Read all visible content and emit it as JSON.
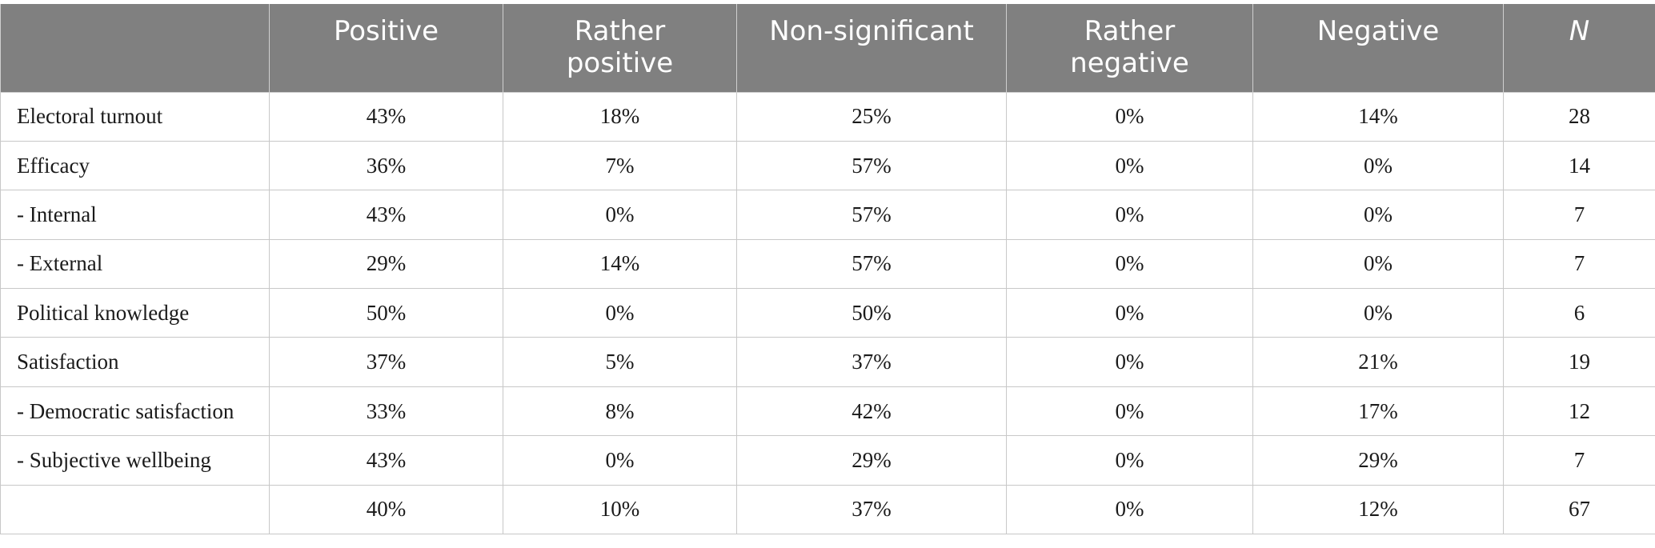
{
  "table": {
    "headers": [
      "",
      "Positive",
      "Rather positive",
      "Non-significant",
      "Rather negative",
      "Negative",
      "N"
    ],
    "rows": [
      {
        "label": "Electoral turnout",
        "cells": [
          "43%",
          "18%",
          "25%",
          "0%",
          "14%",
          "28"
        ]
      },
      {
        "label": "Efficacy",
        "cells": [
          "36%",
          "7%",
          "57%",
          "0%",
          "0%",
          "14"
        ]
      },
      {
        "label": "- Internal",
        "cells": [
          "43%",
          "0%",
          "57%",
          "0%",
          "0%",
          "7"
        ]
      },
      {
        "label": "- External",
        "cells": [
          "29%",
          "14%",
          "57%",
          "0%",
          "0%",
          "7"
        ]
      },
      {
        "label": "Political knowledge",
        "cells": [
          "50%",
          "0%",
          "50%",
          "0%",
          "0%",
          "6"
        ]
      },
      {
        "label": "Satisfaction",
        "cells": [
          "37%",
          "5%",
          "37%",
          "0%",
          "21%",
          "19"
        ]
      },
      {
        "label": "- Democratic satisfaction",
        "cells": [
          "33%",
          "8%",
          "42%",
          "0%",
          "17%",
          "12"
        ]
      },
      {
        "label": "- Subjective wellbeing",
        "cells": [
          "43%",
          "0%",
          "29%",
          "0%",
          "29%",
          "7"
        ]
      },
      {
        "label": "",
        "cells": [
          "40%",
          "10%",
          "37%",
          "0%",
          "12%",
          "67"
        ]
      }
    ]
  },
  "colors": {
    "header_bg": "#808080",
    "header_text": "#ffffff",
    "border": "#c8c8c8",
    "body_text": "#1a1a1a"
  }
}
